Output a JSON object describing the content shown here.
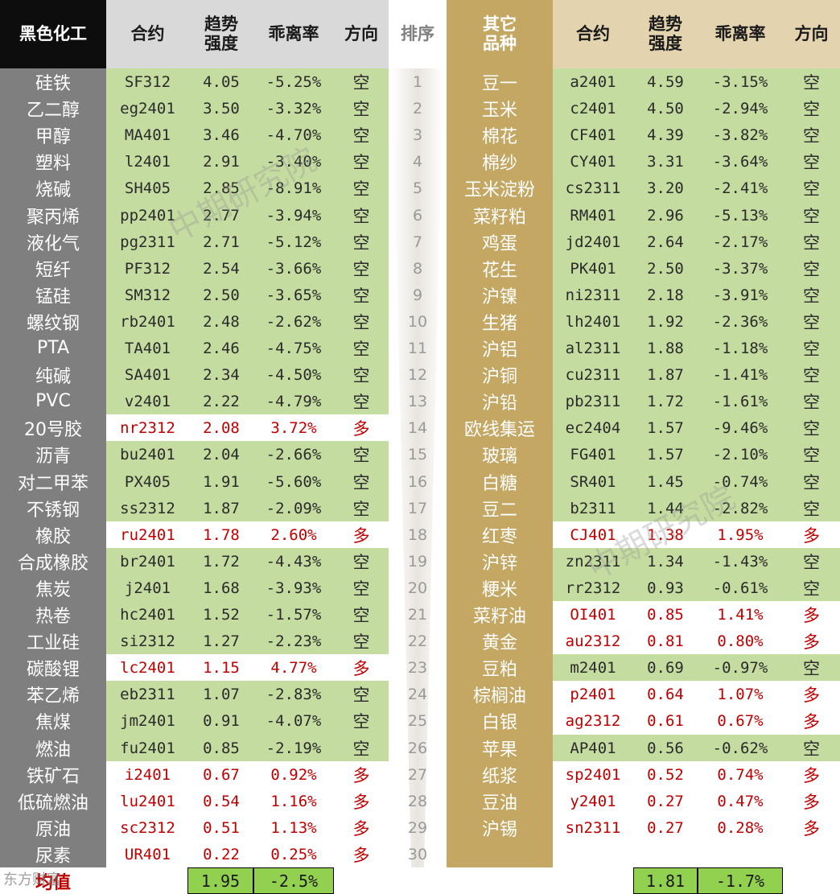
{
  "headers": {
    "left_group": "黑色化工",
    "contract": "合约",
    "strength": "趋势\n强度",
    "deviation": "乖离率",
    "direction": "方向",
    "rank": "排序",
    "right_group": "其它\n品种"
  },
  "left_rows": [
    {
      "name": "硅铁",
      "contract": "SF312",
      "strength": "4.05",
      "deviation": "-5.25%",
      "direction": "空"
    },
    {
      "name": "乙二醇",
      "contract": "eg2401",
      "strength": "3.50",
      "deviation": "-3.32%",
      "direction": "空"
    },
    {
      "name": "甲醇",
      "contract": "MA401",
      "strength": "3.46",
      "deviation": "-4.70%",
      "direction": "空"
    },
    {
      "name": "塑料",
      "contract": "l2401",
      "strength": "2.91",
      "deviation": "-3.40%",
      "direction": "空"
    },
    {
      "name": "烧碱",
      "contract": "SH405",
      "strength": "2.85",
      "deviation": "-8.91%",
      "direction": "空"
    },
    {
      "name": "聚丙烯",
      "contract": "pp2401",
      "strength": "2.77",
      "deviation": "-3.94%",
      "direction": "空"
    },
    {
      "name": "液化气",
      "contract": "pg2311",
      "strength": "2.71",
      "deviation": "-5.12%",
      "direction": "空"
    },
    {
      "name": "短纤",
      "contract": "PF312",
      "strength": "2.54",
      "deviation": "-3.66%",
      "direction": "空"
    },
    {
      "name": "锰硅",
      "contract": "SM312",
      "strength": "2.50",
      "deviation": "-3.65%",
      "direction": "空"
    },
    {
      "name": "螺纹钢",
      "contract": "rb2401",
      "strength": "2.48",
      "deviation": "-2.62%",
      "direction": "空"
    },
    {
      "name": "PTA",
      "contract": "TA401",
      "strength": "2.46",
      "deviation": "-4.75%",
      "direction": "空"
    },
    {
      "name": "纯碱",
      "contract": "SA401",
      "strength": "2.34",
      "deviation": "-4.50%",
      "direction": "空"
    },
    {
      "name": "PVC",
      "contract": "v2401",
      "strength": "2.22",
      "deviation": "-4.79%",
      "direction": "空"
    },
    {
      "name": "20号胶",
      "contract": "nr2312",
      "strength": "2.08",
      "deviation": "3.72%",
      "direction": "多"
    },
    {
      "name": "沥青",
      "contract": "bu2401",
      "strength": "2.04",
      "deviation": "-2.66%",
      "direction": "空"
    },
    {
      "name": "对二甲苯",
      "contract": "PX405",
      "strength": "1.91",
      "deviation": "-5.60%",
      "direction": "空"
    },
    {
      "name": "不锈钢",
      "contract": "ss2312",
      "strength": "1.87",
      "deviation": "-2.09%",
      "direction": "空"
    },
    {
      "name": "橡胶",
      "contract": "ru2401",
      "strength": "1.78",
      "deviation": "2.60%",
      "direction": "多"
    },
    {
      "name": "合成橡胶",
      "contract": "br2401",
      "strength": "1.72",
      "deviation": "-4.43%",
      "direction": "空"
    },
    {
      "name": "焦炭",
      "contract": "j2401",
      "strength": "1.68",
      "deviation": "-3.93%",
      "direction": "空"
    },
    {
      "name": "热卷",
      "contract": "hc2401",
      "strength": "1.52",
      "deviation": "-1.57%",
      "direction": "空"
    },
    {
      "name": "工业硅",
      "contract": "si2312",
      "strength": "1.27",
      "deviation": "-2.23%",
      "direction": "空"
    },
    {
      "name": "碳酸锂",
      "contract": "lc2401",
      "strength": "1.15",
      "deviation": "4.77%",
      "direction": "多"
    },
    {
      "name": "苯乙烯",
      "contract": "eb2311",
      "strength": "1.07",
      "deviation": "-2.83%",
      "direction": "空"
    },
    {
      "name": "焦煤",
      "contract": "jm2401",
      "strength": "0.91",
      "deviation": "-4.07%",
      "direction": "空"
    },
    {
      "name": "燃油",
      "contract": "fu2401",
      "strength": "0.85",
      "deviation": "-2.19%",
      "direction": "空"
    },
    {
      "name": "铁矿石",
      "contract": "i2401",
      "strength": "0.67",
      "deviation": "0.92%",
      "direction": "多"
    },
    {
      "name": "低硫燃油",
      "contract": "lu2401",
      "strength": "0.54",
      "deviation": "1.16%",
      "direction": "多"
    },
    {
      "name": "原油",
      "contract": "sc2312",
      "strength": "0.51",
      "deviation": "1.13%",
      "direction": "多"
    },
    {
      "name": "尿素",
      "contract": "UR401",
      "strength": "0.22",
      "deviation": "0.25%",
      "direction": "多"
    }
  ],
  "right_rows": [
    {
      "name": "豆一",
      "contract": "a2401",
      "strength": "4.59",
      "deviation": "-3.15%",
      "direction": "空"
    },
    {
      "name": "玉米",
      "contract": "c2401",
      "strength": "4.50",
      "deviation": "-2.94%",
      "direction": "空"
    },
    {
      "name": "棉花",
      "contract": "CF401",
      "strength": "4.39",
      "deviation": "-3.82%",
      "direction": "空"
    },
    {
      "name": "棉纱",
      "contract": "CY401",
      "strength": "3.31",
      "deviation": "-3.64%",
      "direction": "空"
    },
    {
      "name": "玉米淀粉",
      "contract": "cs2311",
      "strength": "3.20",
      "deviation": "-2.41%",
      "direction": "空"
    },
    {
      "name": "菜籽粕",
      "contract": "RM401",
      "strength": "2.96",
      "deviation": "-5.13%",
      "direction": "空"
    },
    {
      "name": "鸡蛋",
      "contract": "jd2401",
      "strength": "2.64",
      "deviation": "-2.17%",
      "direction": "空"
    },
    {
      "name": "花生",
      "contract": "PK401",
      "strength": "2.50",
      "deviation": "-3.37%",
      "direction": "空"
    },
    {
      "name": "沪镍",
      "contract": "ni2311",
      "strength": "2.18",
      "deviation": "-3.91%",
      "direction": "空"
    },
    {
      "name": "生猪",
      "contract": "lh2401",
      "strength": "1.92",
      "deviation": "-2.36%",
      "direction": "空"
    },
    {
      "name": "沪铝",
      "contract": "al2311",
      "strength": "1.88",
      "deviation": "-1.18%",
      "direction": "空"
    },
    {
      "name": "沪铜",
      "contract": "cu2311",
      "strength": "1.87",
      "deviation": "-1.41%",
      "direction": "空"
    },
    {
      "name": "沪铅",
      "contract": "pb2311",
      "strength": "1.72",
      "deviation": "-1.61%",
      "direction": "空"
    },
    {
      "name": "欧线集运",
      "contract": "ec2404",
      "strength": "1.57",
      "deviation": "-9.46%",
      "direction": "空"
    },
    {
      "name": "玻璃",
      "contract": "FG401",
      "strength": "1.57",
      "deviation": "-2.10%",
      "direction": "空"
    },
    {
      "name": "白糖",
      "contract": "SR401",
      "strength": "1.45",
      "deviation": "-0.74%",
      "direction": "空"
    },
    {
      "name": "豆二",
      "contract": "b2311",
      "strength": "1.44",
      "deviation": "-2.82%",
      "direction": "空"
    },
    {
      "name": "红枣",
      "contract": "CJ401",
      "strength": "1.38",
      "deviation": "1.95%",
      "direction": "多"
    },
    {
      "name": "沪锌",
      "contract": "zn2311",
      "strength": "1.34",
      "deviation": "-1.43%",
      "direction": "空"
    },
    {
      "name": "粳米",
      "contract": "rr2312",
      "strength": "0.93",
      "deviation": "-0.61%",
      "direction": "空"
    },
    {
      "name": "菜籽油",
      "contract": "OI401",
      "strength": "0.85",
      "deviation": "1.41%",
      "direction": "多"
    },
    {
      "name": "黄金",
      "contract": "au2312",
      "strength": "0.81",
      "deviation": "0.80%",
      "direction": "多"
    },
    {
      "name": "豆粕",
      "contract": "m2401",
      "strength": "0.69",
      "deviation": "-0.97%",
      "direction": "空"
    },
    {
      "name": "棕榈油",
      "contract": "p2401",
      "strength": "0.64",
      "deviation": "1.07%",
      "direction": "多"
    },
    {
      "name": "白银",
      "contract": "ag2312",
      "strength": "0.61",
      "deviation": "0.67%",
      "direction": "多"
    },
    {
      "name": "苹果",
      "contract": "AP401",
      "strength": "0.56",
      "deviation": "-0.62%",
      "direction": "空"
    },
    {
      "name": "纸浆",
      "contract": "sp2401",
      "strength": "0.52",
      "deviation": "0.74%",
      "direction": "多"
    },
    {
      "name": "豆油",
      "contract": "y2401",
      "strength": "0.27",
      "deviation": "0.47%",
      "direction": "多"
    },
    {
      "name": "沪锡",
      "contract": "sn2311",
      "strength": "0.27",
      "deviation": "0.28%",
      "direction": "多"
    }
  ],
  "ranks": [
    "1",
    "2",
    "3",
    "4",
    "5",
    "6",
    "7",
    "8",
    "9",
    "10",
    "11",
    "12",
    "13",
    "14",
    "15",
    "16",
    "17",
    "18",
    "19",
    "20",
    "21",
    "22",
    "23",
    "24",
    "25",
    "26",
    "27",
    "28",
    "29",
    "30"
  ],
  "averages": {
    "label": "均值",
    "left_strength": "1.95",
    "left_deviation": "-2.5%",
    "right_strength": "1.81",
    "right_deviation": "-1.7%"
  },
  "watermarks": [
    "中期研究院",
    "中期研究院"
  ],
  "footer_logo": "东方财富",
  "colors": {
    "short_bg": "#c5dca0",
    "long_text": "#c00000",
    "left_name_bg": "#7f7f7f",
    "right_name_bg": "#c4a763",
    "avg_bg": "#92d050"
  }
}
